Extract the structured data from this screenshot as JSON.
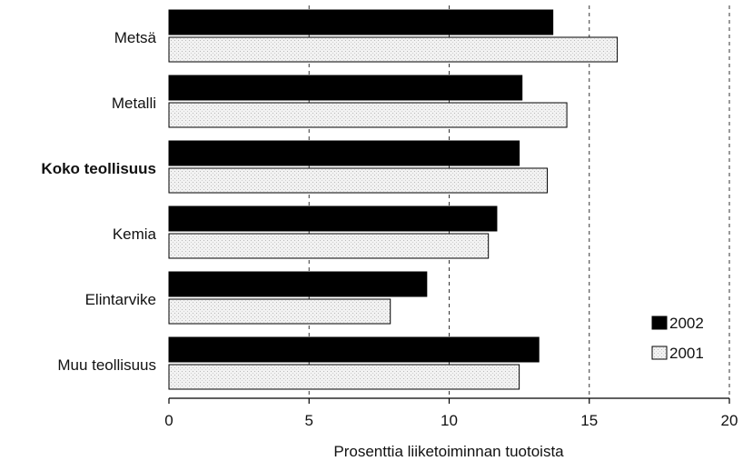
{
  "chart_data": {
    "type": "bar",
    "orientation": "horizontal",
    "title": "",
    "xlabel": "Prosenttia liiketoiminnan tuotoista",
    "ylabel": "",
    "xlim": [
      0,
      20
    ],
    "xticks": [
      0,
      5,
      10,
      15,
      20
    ],
    "grid": "vertical dashed",
    "legend_position": "bottom-right",
    "categories": [
      "Metsä",
      "Metalli",
      "Koko teollisuus",
      "Kemia",
      "Elintarvike",
      "Muu teollisuus"
    ],
    "bold_categories": [
      "Koko teollisuus"
    ],
    "series": [
      {
        "name": "2002",
        "color": "#000000",
        "values": [
          13.7,
          12.6,
          12.5,
          11.7,
          9.2,
          13.2
        ]
      },
      {
        "name": "2001",
        "color": "#e8e8e8",
        "pattern": "light-dotted",
        "values": [
          16.0,
          14.2,
          13.5,
          11.4,
          7.9,
          12.5
        ]
      }
    ]
  }
}
